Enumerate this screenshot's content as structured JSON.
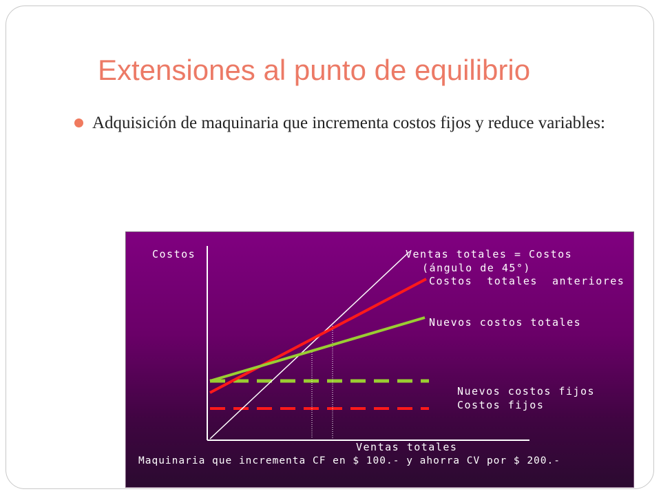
{
  "slide": {
    "title": "Extensiones al punto de equilibrio",
    "bullet": "Adquisición de maquinaria que incrementa costos fijos y reduce variables:",
    "accent_color": "#ec7a66"
  },
  "diagram": {
    "y_axis_label": "Costos",
    "x_axis_label": "Ventas totales",
    "sales_line_label_1": "Ventas totales = Costos",
    "sales_line_label_2": "(ángulo de 45°)",
    "old_total_costs_label": "Costos  totales  anteriores",
    "new_total_costs_label": "Nuevos costos totales",
    "new_fixed_costs_label": "Nuevos costos fijos",
    "fixed_costs_label": "Costos fijos",
    "caption": "Maquinaria que incrementa CF en $ 100.- y ahorra CV por $ 200.-",
    "colors": {
      "background": "#6a0068",
      "sales_line": "#ffffff",
      "old_costs": "#ff1a1a",
      "new_costs": "#9acd32"
    }
  }
}
